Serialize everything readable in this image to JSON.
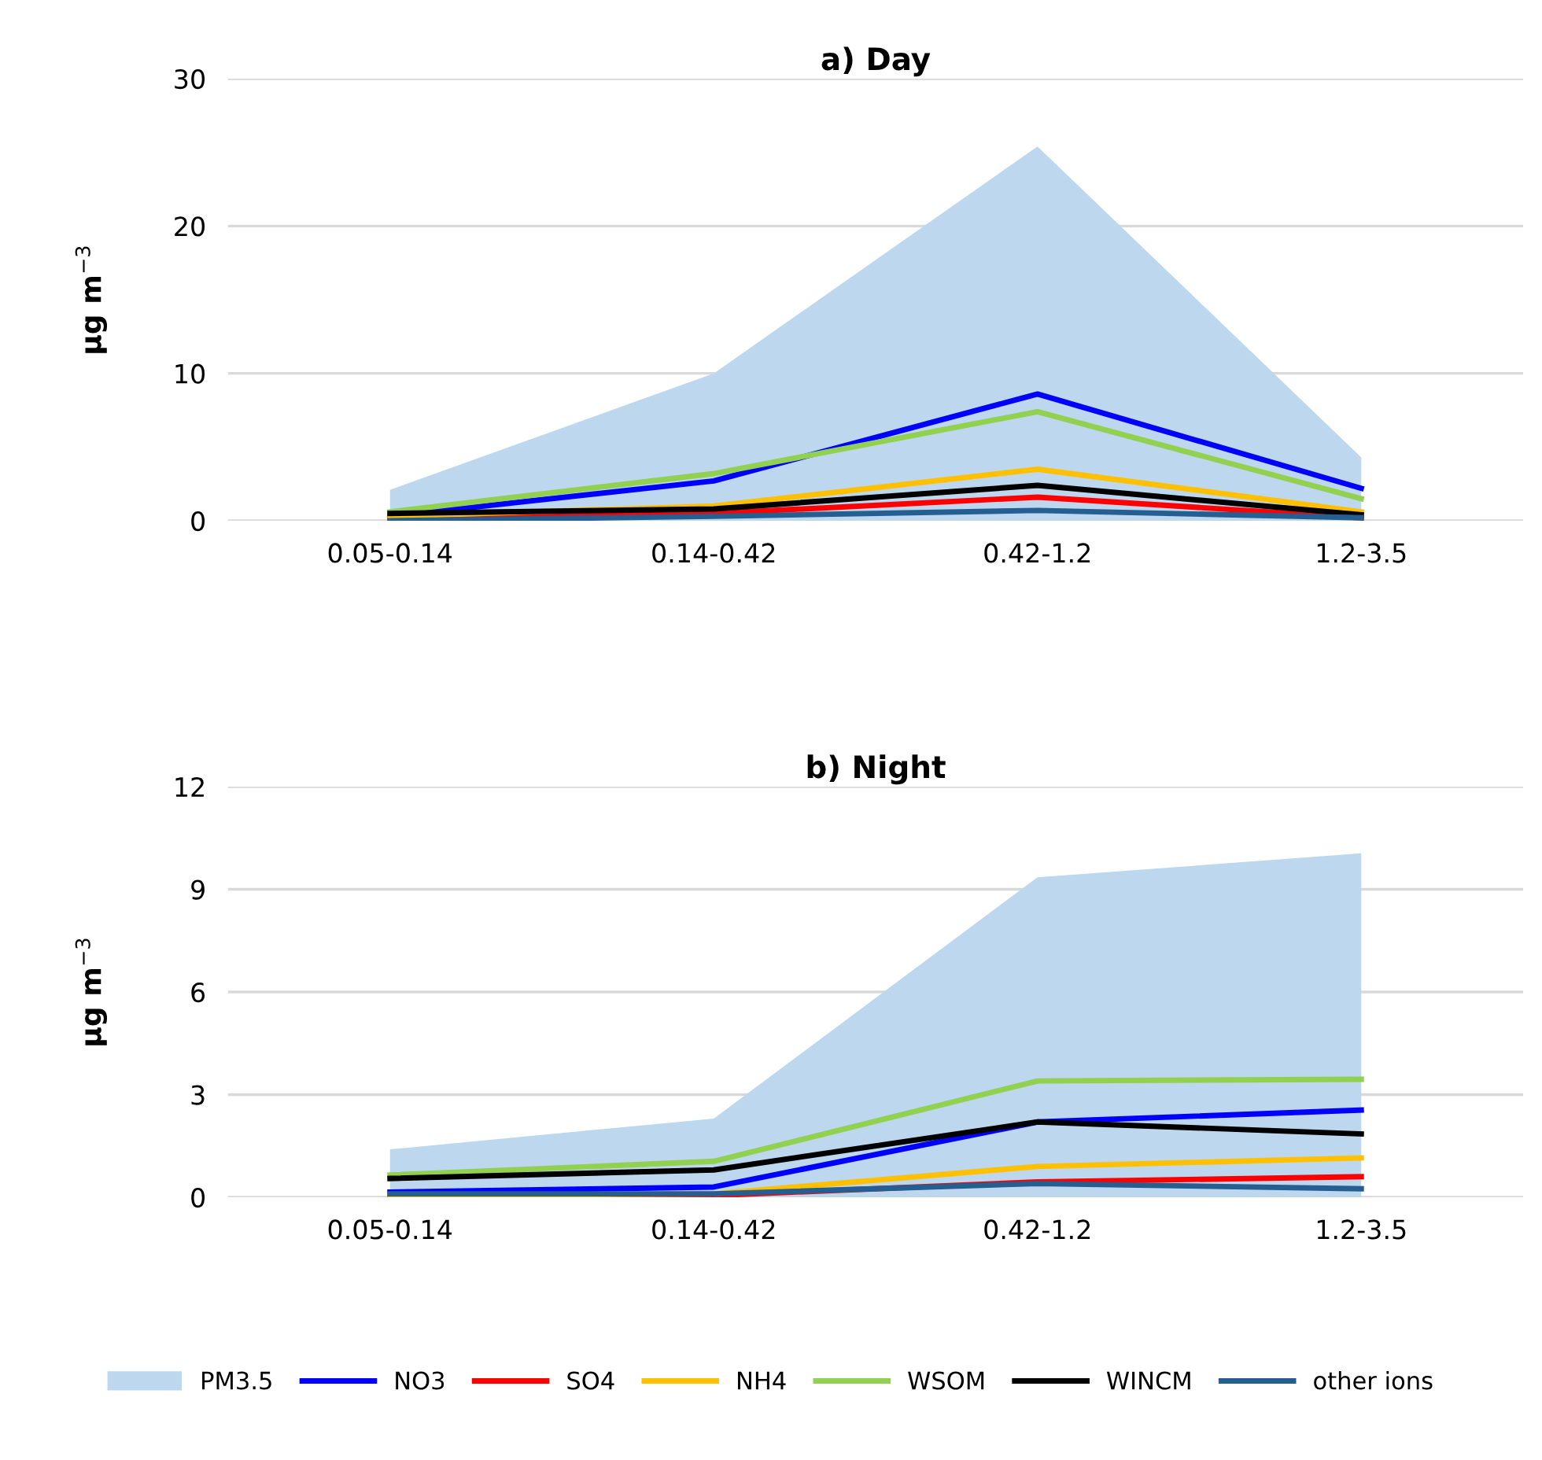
{
  "chart_data": [
    {
      "type": "line",
      "title": "a) Day",
      "ylabel": "μg m$^{−3}$",
      "categories": [
        "0.05-0.14",
        "0.14-0.42",
        "0.42-1.2",
        "1.2-3.5"
      ],
      "ylim": [
        0,
        30
      ],
      "yticks": [
        0,
        10,
        20,
        30
      ],
      "grid": "y",
      "legend": "bottom",
      "series": [
        {
          "name": "PM3.5",
          "type": "area",
          "color": "#bdd7ee",
          "values": [
            2.1,
            10,
            25.4,
            4.3
          ]
        },
        {
          "name": "NO3",
          "color": "#0000ff",
          "values": [
            0.3,
            2.7,
            8.6,
            2.2
          ]
        },
        {
          "name": "SO4",
          "color": "#ff0000",
          "values": [
            0.2,
            0.5,
            1.6,
            0.2
          ]
        },
        {
          "name": "NH4",
          "color": "#ffc000",
          "values": [
            0.3,
            1.0,
            3.5,
            0.6
          ]
        },
        {
          "name": "WSOM",
          "color": "#92d050",
          "values": [
            0.6,
            3.2,
            7.4,
            1.5
          ]
        },
        {
          "name": "WINCM",
          "color": "#000000",
          "values": [
            0.5,
            0.8,
            2.4,
            0.4
          ]
        },
        {
          "name": "other ions",
          "color": "#255e91",
          "values": [
            0.0,
            0.3,
            0.7,
            0.2
          ]
        }
      ]
    },
    {
      "type": "line",
      "title": "b) Night",
      "ylabel": "μg m$^{−3}$",
      "categories": [
        "0.05-0.14",
        "0.14-0.42",
        "0.42-1.2",
        "1.2-3.5"
      ],
      "ylim": [
        0,
        12
      ],
      "yticks": [
        0,
        3,
        6,
        9,
        12
      ],
      "grid": "y",
      "series": [
        {
          "type": "area",
          "color": "#bdd7ee",
          "values": [
            1.4,
            2.3,
            9.35,
            10.05
          ]
        },
        {
          "color": "#0000ff",
          "values": [
            0.15,
            0.3,
            2.2,
            2.55
          ]
        },
        {
          "color": "#ff0000",
          "values": [
            0.05,
            0.05,
            0.45,
            0.6
          ]
        },
        {
          "color": "#ffc000",
          "values": [
            0.05,
            0.1,
            0.9,
            1.15
          ]
        },
        {
          "color": "#92d050",
          "values": [
            0.65,
            1.05,
            3.4,
            3.45
          ]
        },
        {
          "color": "#000000",
          "values": [
            0.55,
            0.8,
            2.2,
            1.85
          ]
        },
        {
          "color": "#255e91",
          "values": [
            0.1,
            0.1,
            0.4,
            0.25
          ]
        }
      ]
    }
  ]
}
